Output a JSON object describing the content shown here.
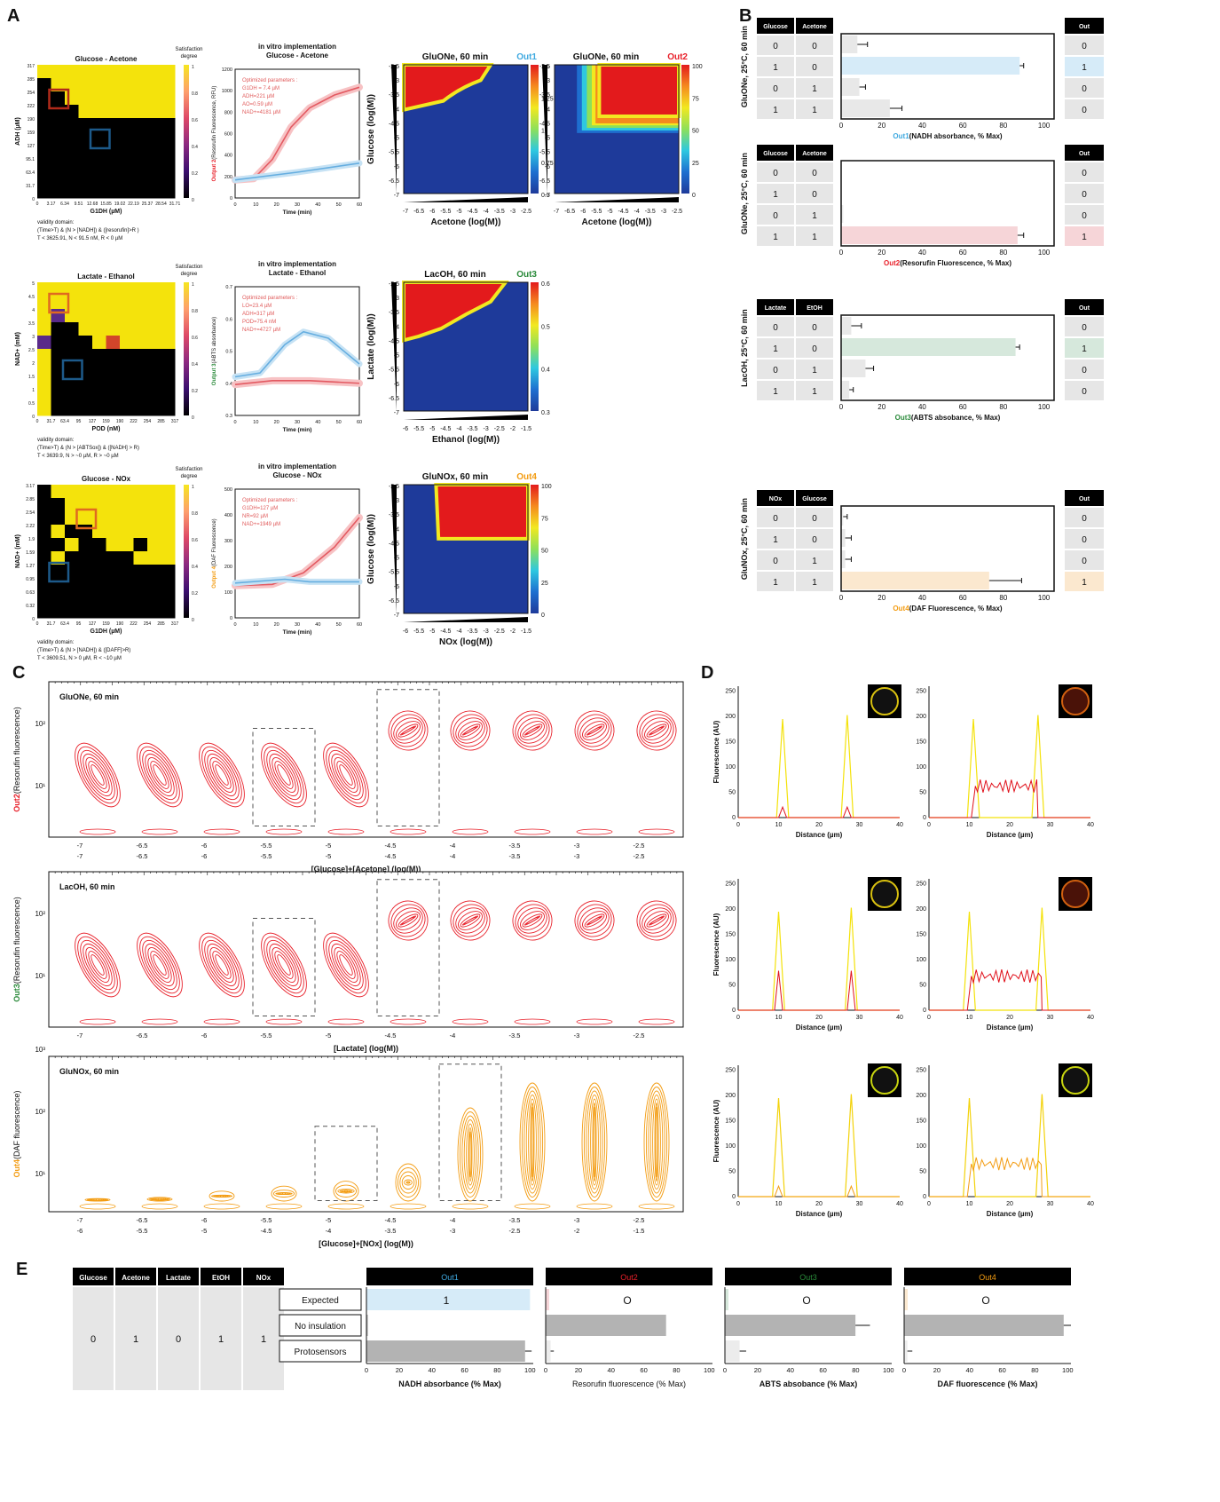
{
  "panels": {
    "a": "A",
    "b": "B",
    "c": "C",
    "d": "D",
    "e": "E"
  },
  "colors": {
    "out1": "#3fa9e0",
    "out2": "#e8202a",
    "out3": "#2a8a3a",
    "out4": "#f39c12",
    "heat_red": "#e31a1c",
    "heat_blue": "#1e3a9a"
  },
  "panel_a": {
    "sat_label": "Satisfaction degree",
    "rows": [
      {
        "heat_title": "Glucose - Acetone",
        "heat_ylabel": "ADH (µM)",
        "heat_xlabel": "G1DH (µM)",
        "heat_xticks": [
          "0",
          "3.17",
          "6.34",
          "9.51",
          "12.68",
          "15.85",
          "19.02",
          "22.19",
          "25.37",
          "28.54",
          "31.71"
        ],
        "heat_yticks": [
          "317",
          "285",
          "254",
          "222",
          "190",
          "159",
          "127",
          "95.1",
          "63.4",
          "31.7",
          "0"
        ],
        "validity": [
          "validity domain:",
          "(Time>T) & (N > [NADH]) & ([resorufin]>R )",
          "T < 3625.91, N < 91.5 nM, R < 0 µM"
        ],
        "line_title_italic": "in vitro",
        "line_title_rest": " implementation",
        "line_subtitle": "Glucose - Acetone",
        "line_ylabel_out": "Output 2",
        "line_ylabel_rest": "(Resorufin Fluorescence, RFU)",
        "line_xlabel": "Time (min)",
        "line_yticks": [
          "0",
          "200",
          "400",
          "600",
          "800",
          "1000",
          "1200"
        ],
        "line_xticks": [
          "0",
          "10",
          "20",
          "30",
          "40",
          "50",
          "60"
        ],
        "params": [
          "Optimized parameters :",
          "G1DH = 7.4 µM",
          "ADH=221 µM",
          "AO=0.59 µM",
          "NAD+=4181 µM"
        ],
        "contours": [
          {
            "title": "GluONe, 60 min",
            "out": "Out1",
            "ylabel": "Glucose (log(M))",
            "xlabel": "Acetone (log(M))",
            "cticks": [
              "1.5",
              "1.25",
              "1",
              "0.75",
              "0.5"
            ]
          },
          {
            "title": "GluONe, 60 min",
            "out": "Out2",
            "ylabel": "",
            "xlabel": "Acetone (log(M))",
            "cticks": [
              "100",
              "75",
              "50",
              "25",
              "0"
            ]
          }
        ]
      },
      {
        "heat_title": "Lactate - Ethanol",
        "heat_ylabel": "NAD+ (mM)",
        "heat_xlabel": "POD (nM)",
        "heat_xticks": [
          "0",
          "31.7",
          "63.4",
          "95",
          "127",
          "159",
          "190",
          "222",
          "254",
          "285",
          "317"
        ],
        "heat_yticks": [
          "5",
          "4.5",
          "4",
          "3.5",
          "3",
          "2.5",
          "2",
          "1.5",
          "1",
          "0.5",
          "0"
        ],
        "validity": [
          "validity domain:",
          "(Time>T) & (N > [ABTSox]) & ([NADH] > R)",
          "T < 3639.9, N > ~0 µM, R > ~0 µM"
        ],
        "line_title_italic": "in vitro",
        "line_title_rest": " implementation",
        "line_subtitle": "Lactate - Ethanol",
        "line_ylabel_out": "Output 3",
        "line_ylabel_rest": "(ABTS absorbance)",
        "line_xlabel": "Time (min)",
        "line_yticks": [
          "0.3",
          "0.4",
          "0.5",
          "0.6",
          "0.7"
        ],
        "line_xticks": [
          "0",
          "10",
          "20",
          "30",
          "40",
          "50",
          "60"
        ],
        "params": [
          "Optimized parameters :",
          "LO=23.4 µM",
          "ADH=317 µM",
          "POD=75.4 nM",
          "NAD+=4727 µM"
        ],
        "contours": [
          {
            "title": "LacOH, 60 min",
            "out": "Out3",
            "ylabel": "Lactate (log(M))",
            "xlabel": "Ethanol (log(M))",
            "cticks": [
              "0.6",
              "0.5",
              "0.4",
              "0.3"
            ]
          }
        ]
      },
      {
        "heat_title": "Glucose - NOx",
        "heat_ylabel": "NAD+ (mM)",
        "heat_xlabel": "G1DH (µM)",
        "heat_xticks": [
          "0",
          "31.7",
          "63.4",
          "95",
          "127",
          "159",
          "190",
          "222",
          "254",
          "285",
          "317"
        ],
        "heat_yticks": [
          "3.17",
          "2.85",
          "2.54",
          "2.22",
          "1.9",
          "1.59",
          "1.27",
          "0.95",
          "0.63",
          "0.32",
          "0"
        ],
        "validity": [
          "validity domain:",
          "(Time>T) & (N > [NADH]) & ([DAFF]>R)",
          "T < 3609.51, N > 0 µM, R < ~10 µM"
        ],
        "line_title_italic": "in vitro",
        "line_title_rest": " implementation",
        "line_subtitle": "Glucose - NOx",
        "line_ylabel_out": "Output 4",
        "line_ylabel_rest": "(DAF Fluorescence)",
        "line_xlabel": "Time (min)",
        "line_yticks": [
          "0",
          "100",
          "200",
          "300",
          "400",
          "500"
        ],
        "line_xticks": [
          "0",
          "10",
          "20",
          "30",
          "40",
          "50",
          "60"
        ],
        "params": [
          "Optimized parameters :",
          "G1DH=127 µM",
          "NR=92 µM",
          "NAD+=1949 µM"
        ],
        "contours": [
          {
            "title": "GluNOx, 60 min",
            "out": "Out4",
            "ylabel": "Glucose (log(M))",
            "xlabel": "NOx (log(M))",
            "cticks": [
              "100",
              "75",
              "50",
              "25",
              "0"
            ]
          }
        ]
      }
    ],
    "contour_yticks": [
      "-2.5",
      "-3",
      "-3.5",
      "-4",
      "-4.5",
      "-5",
      "-5.5",
      "-6",
      "-6.5",
      "-7"
    ],
    "contour_xticks_a": [
      "-7",
      "-6.5",
      "-6",
      "-5.5",
      "-5",
      "-4.5",
      "-4",
      "-3.5",
      "-3",
      "-2.5"
    ],
    "contour_xticks_b": [
      "-6",
      "-5.5",
      "-5",
      "-4.5",
      "-4",
      "-3.5",
      "-3",
      "-2.5",
      "-2",
      "-1.5"
    ]
  },
  "panel_b": {
    "out_header": "Out",
    "blocks": [
      {
        "side": "GluONe, 25°C, 60 min",
        "h1": "Glucose",
        "h2": "Acetone",
        "rows": [
          [
            "0",
            "0"
          ],
          [
            "1",
            "0"
          ],
          [
            "0",
            "1"
          ],
          [
            "1",
            "1"
          ]
        ],
        "outs": [
          "0",
          "1",
          "0",
          "0"
        ],
        "bars": [
          8,
          88,
          9,
          24
        ],
        "errs": [
          5,
          2,
          3,
          6
        ],
        "hi": 1,
        "color_key": "out1",
        "out_label": "Out1",
        "xlabel": "(NADH absorbance, % Max)"
      },
      {
        "side": "GluONe, 25°C, 60 min",
        "h1": "Glucose",
        "h2": "Acetone",
        "rows": [
          [
            "0",
            "0"
          ],
          [
            "1",
            "0"
          ],
          [
            "0",
            "1"
          ],
          [
            "1",
            "1"
          ]
        ],
        "outs": [
          "0",
          "0",
          "0",
          "1"
        ],
        "bars": [
          0,
          0,
          1,
          87
        ],
        "errs": [
          0,
          0,
          0,
          3
        ],
        "hi": 3,
        "color_key": "out2",
        "out_label": "Out2",
        "xlabel": "(Resorufin Fluorescence, % Max)"
      },
      {
        "side": "LacOH, 25°C, 60 min",
        "h1": "Lactate",
        "h2": "EtOH",
        "rows": [
          [
            "0",
            "0"
          ],
          [
            "1",
            "0"
          ],
          [
            "0",
            "1"
          ],
          [
            "1",
            "1"
          ]
        ],
        "outs": [
          "0",
          "1",
          "0",
          "0"
        ],
        "bars": [
          5,
          86,
          12,
          4
        ],
        "errs": [
          5,
          2,
          4,
          2
        ],
        "hi": 1,
        "color_key": "out3",
        "out_label": "Out3",
        "xlabel": "(ABTS absobance,  % Max)"
      },
      {
        "side": "GluNOx, 25°C, 60 min",
        "h1": "NOx",
        "h2": "Glucose",
        "rows": [
          [
            "0",
            "0"
          ],
          [
            "1",
            "0"
          ],
          [
            "0",
            "1"
          ],
          [
            "1",
            "1"
          ]
        ],
        "outs": [
          "0",
          "0",
          "0",
          "1"
        ],
        "bars": [
          1,
          2,
          2,
          73
        ],
        "errs": [
          2,
          3,
          3,
          16
        ],
        "hi": 3,
        "color_key": "out4",
        "out_label": "Out4",
        "xlabel": "(DAF Fluorescence, % Max)"
      }
    ],
    "xticks": [
      "0",
      "20",
      "40",
      "60",
      "80",
      "100"
    ]
  },
  "panel_c": {
    "plots": [
      {
        "title": "GluONe, 60 min",
        "out": "Out2",
        "ylabel": "(Resorufin fluorescence)",
        "xlabel": "[Glucose]+[Acetone] (log(M))",
        "xticks1": [
          "-7",
          "-6.5",
          "-6",
          "-5.5",
          "-5",
          "-4.5",
          "-4",
          "-3.5",
          "-3",
          "-2.5"
        ],
        "xticks2": [
          "-7",
          "-6.5",
          "-6",
          "-5.5",
          "-5",
          "-4.5",
          "-4",
          "-3.5",
          "-3",
          "-2.5"
        ],
        "yticks": [
          "10¹",
          "10²"
        ]
      },
      {
        "title": "LacOH, 60 min",
        "out": "Out3",
        "ylabel": "(Resorufin fluorescence)",
        "xlabel": "[Lactate] (log(M))",
        "xticks1": [
          "-7",
          "-6.5",
          "-6",
          "-5.5",
          "-5",
          "-4.5",
          "-4",
          "-3.5",
          "-3",
          "-2.5"
        ],
        "xticks2": [],
        "yticks": [
          "10¹",
          "10²"
        ]
      },
      {
        "title": "GluNOx, 60 min",
        "out": "Out4",
        "ylabel": "(DAF fluorescence)",
        "xlabel": "[Glucose]+[NOx] (log(M))",
        "xticks1": [
          "-7",
          "-6.5",
          "-6",
          "-5.5",
          "-5",
          "-4.5",
          "-4",
          "-3.5",
          "-3",
          "-2.5"
        ],
        "xticks2": [
          "-6",
          "-5.5",
          "-5",
          "-4.5",
          "-4",
          "-3.5",
          "-3",
          "-2.5",
          "-2",
          "-1.5"
        ],
        "yticks": [
          "10¹",
          "10²",
          "10³"
        ]
      }
    ]
  },
  "panel_d": {
    "ylabel": "Fluorescence (AU)",
    "xlabel": "Distance (µm)",
    "yticks": [
      "0",
      "50",
      "100",
      "150",
      "200",
      "250"
    ],
    "xticks": [
      "0",
      "10",
      "20",
      "30",
      "40"
    ]
  },
  "panel_e": {
    "inputs": [
      "Glucose",
      "Acetone",
      "Lactate",
      "EtOH",
      "NOx"
    ],
    "values": [
      "0",
      "1",
      "0",
      "1",
      "1"
    ],
    "row_labels": [
      "Expected",
      "No insulation",
      "Protosensors"
    ],
    "outs": [
      {
        "name": "Out1",
        "color_key": "out1",
        "expected": "1",
        "no_ins": 1,
        "proto": 97,
        "proto_err": 4,
        "no_ins_err": 0,
        "xlabel": "NADH absorbance (% Max)"
      },
      {
        "name": "Out2",
        "color_key": "out2",
        "expected": "O",
        "no_ins": 83,
        "proto": 3,
        "proto_err": 2,
        "no_ins_err": 0,
        "xlabel": "Resorufin fluorescence (% Max)"
      },
      {
        "name": "Out3",
        "color_key": "out3",
        "expected": "O",
        "no_ins": 90,
        "proto": 9,
        "proto_err": 4,
        "no_ins_err": 10,
        "xlabel": "ABTS absobance (% Max)"
      },
      {
        "name": "Out4",
        "color_key": "out4",
        "expected": "O",
        "no_ins": 110,
        "proto": 2,
        "proto_err": 3,
        "no_ins_err": 5,
        "xlabel": "DAF fluorescence (% Max)"
      }
    ],
    "xticks": [
      "0",
      "20",
      "40",
      "60",
      "80",
      "100"
    ]
  }
}
